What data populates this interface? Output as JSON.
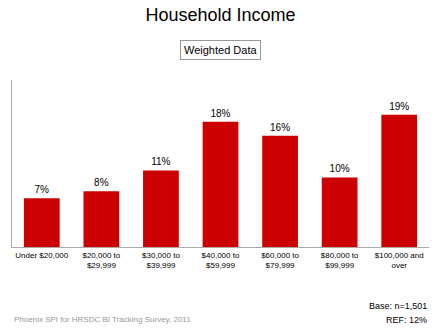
{
  "chart_data": {
    "type": "bar",
    "title": "Household Income",
    "subtitle": "Weighted Data",
    "categories": [
      "Under $20,000",
      "$20,000 to\n$29,999",
      "$30,000 to\n$39,999",
      "$40,000 to\n$59,999",
      "$60,000 to\n$79,999",
      "$80,000 to\n$99,999",
      "$100,000 and\nover"
    ],
    "values": [
      7,
      8,
      11,
      18,
      16,
      10,
      19
    ],
    "value_labels": [
      "7%",
      "8%",
      "11%",
      "18%",
      "16%",
      "10%",
      "19%"
    ],
    "data_labels": true,
    "color": "#cc0000",
    "ylim": [
      0,
      24
    ],
    "tick_labels": "x",
    "grid": false,
    "annotations": [
      "Phoenix SPI for HRSDC BI Tracking Survey, 2011",
      "Base: n=1,501",
      "REF: 12%"
    ]
  }
}
